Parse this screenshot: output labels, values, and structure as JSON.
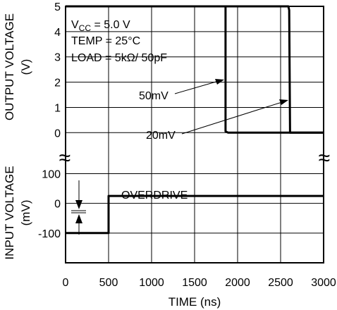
{
  "chart_data": {
    "type": "line",
    "xlabel": "TIME (ns)",
    "x_ticks": [
      0,
      500,
      1000,
      1500,
      2000,
      2500,
      3000
    ],
    "xlim": [
      0,
      3000
    ],
    "panels": [
      {
        "id": "output",
        "ylabel_line1": "OUTPUT VOLTAGE",
        "ylabel_line2": "(V)",
        "ylim": [
          -0.8,
          5
        ],
        "y_ticks": [
          0,
          1,
          2,
          3,
          4,
          5
        ],
        "series": [
          {
            "name": "50mV",
            "points": [
              [
                0,
                5
              ],
              [
                1860,
                5
              ],
              [
                1860,
                0.05
              ],
              [
                1890,
                0
              ],
              [
                3000,
                0
              ]
            ]
          },
          {
            "name": "20mV",
            "points": [
              [
                0,
                5
              ],
              [
                2590,
                5
              ],
              [
                2600,
                4.85
              ],
              [
                2610,
                0
              ],
              [
                3000,
                0
              ]
            ]
          }
        ]
      },
      {
        "id": "input",
        "ylabel_line1": "INPUT VOLTAGE",
        "ylabel_line2": "(mV)",
        "ylim": [
          -200,
          170
        ],
        "y_ticks": [
          -100,
          0,
          100
        ],
        "series": [
          {
            "name": "input",
            "points": [
              [
                0,
                -100
              ],
              [
                500,
                -100
              ],
              [
                500,
                25
              ],
              [
                3000,
                25
              ]
            ]
          }
        ]
      }
    ],
    "conditions": {
      "vcc_prefix": "V",
      "vcc_sub": "CC",
      "vcc_value": " = 5.0 V",
      "temp": "TEMP = 25°C",
      "load": "LOAD = 5kΩ/ 50pF"
    },
    "annotations": {
      "label_50mv": "50mV",
      "label_20mv": "20mV",
      "overdrive": "OVERDRIVE"
    },
    "break_symbol": "≈"
  }
}
